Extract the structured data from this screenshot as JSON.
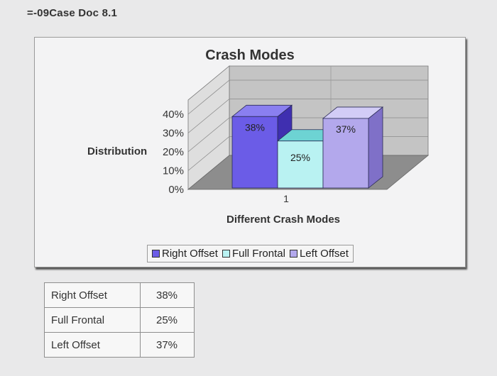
{
  "document": {
    "title": "=-09Case Doc 8.1"
  },
  "chart_data": {
    "type": "bar",
    "title": "Crash Modes",
    "xlabel": "Different Crash Modes",
    "ylabel": "Distribution",
    "categories": [
      "1"
    ],
    "ylim": [
      0,
      40
    ],
    "y_ticks": [
      "0%",
      "10%",
      "20%",
      "30%",
      "40%"
    ],
    "series": [
      {
        "name": "Right Offset",
        "values": [
          38
        ],
        "label": "38%",
        "color": "#6b5ce7"
      },
      {
        "name": "Full Frontal",
        "values": [
          25
        ],
        "label": "25%",
        "color": "#b9f2f2"
      },
      {
        "name": "Left Offset",
        "values": [
          37
        ],
        "label": "37%",
        "color": "#b3a8ec"
      }
    ],
    "legend_position": "bottom",
    "grid": true
  },
  "table": {
    "rows": [
      {
        "label": "Right Offset",
        "value": "38%"
      },
      {
        "label": "Full Frontal",
        "value": "25%"
      },
      {
        "label": "Left Offset",
        "value": "37%"
      }
    ]
  }
}
